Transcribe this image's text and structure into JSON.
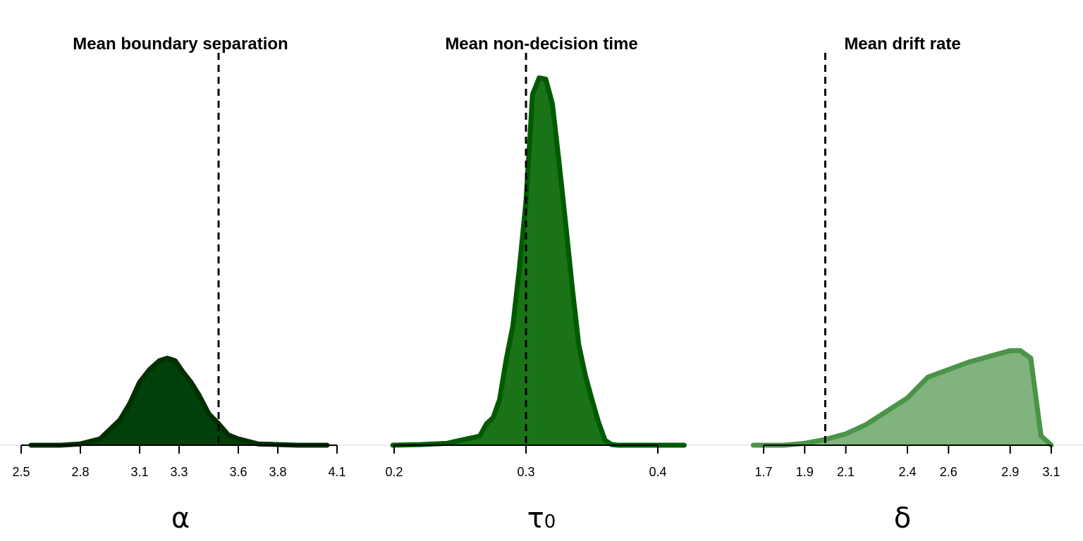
{
  "chart_data": [
    {
      "type": "area",
      "title": "Mean boundary separation",
      "xlabel": "α",
      "xlabel_subscript": "",
      "xlim": [
        2.5,
        4.1
      ],
      "ylim": [
        0,
        3.0
      ],
      "xticks": [
        2.5,
        2.8,
        3.1,
        3.3,
        3.6,
        3.8,
        4.1
      ],
      "xtick_labels": [
        "2.5",
        "2.8",
        "3.1",
        "3.3",
        "3.6",
        "3.8",
        "4.1"
      ],
      "reference_line": 3.5,
      "fill_color": "#00400a",
      "line_color": "#003000",
      "x": [
        2.55,
        2.7,
        2.8,
        2.9,
        3.0,
        3.05,
        3.1,
        3.15,
        3.2,
        3.24,
        3.28,
        3.32,
        3.36,
        3.4,
        3.45,
        3.5,
        3.55,
        3.6,
        3.7,
        3.8,
        3.9,
        4.0,
        4.05
      ],
      "y": [
        0.0,
        0.0,
        0.01,
        0.05,
        0.2,
        0.33,
        0.5,
        0.6,
        0.67,
        0.69,
        0.67,
        0.58,
        0.5,
        0.4,
        0.25,
        0.17,
        0.08,
        0.05,
        0.01,
        0.005,
        0.0,
        0.0,
        0.0
      ]
    },
    {
      "type": "area",
      "title": "Mean non-decision time",
      "xlabel": "τ",
      "xlabel_subscript": "0",
      "xlim": [
        0.2,
        0.4
      ],
      "ylim": [
        0,
        62
      ],
      "xticks": [
        0.2,
        0.3,
        0.4
      ],
      "xtick_labels": [
        "0.2",
        "0.3",
        "0.4"
      ],
      "reference_line": 0.3,
      "fill_color": "#1a7317",
      "line_color": "#005a00",
      "x": [
        0.199,
        0.22,
        0.24,
        0.25,
        0.265,
        0.27,
        0.275,
        0.28,
        0.285,
        0.29,
        0.295,
        0.3,
        0.305,
        0.31,
        0.315,
        0.32,
        0.325,
        0.33,
        0.335,
        0.34,
        0.345,
        0.35,
        0.355,
        0.36,
        0.365,
        0.37,
        0.375,
        0.38,
        0.39,
        0.4,
        0.42
      ],
      "y": [
        0.0,
        0.1,
        0.3,
        0.8,
        1.5,
        3.5,
        4.5,
        7.5,
        14.0,
        19.5,
        29.0,
        40.0,
        57.5,
        60.2,
        60.0,
        56.0,
        46.5,
        36.5,
        26.0,
        16.5,
        11.5,
        7.5,
        3.8,
        0.8,
        0.1,
        0.0,
        0.0,
        0.0,
        0.0,
        0.0,
        0.0
      ]
    },
    {
      "type": "area",
      "title": "Mean drift rate",
      "xlabel": "δ",
      "xlabel_subscript": "",
      "xlim": [
        1.7,
        3.1
      ],
      "ylim": [
        0,
        2.0
      ],
      "xticks": [
        1.7,
        1.9,
        2.1,
        2.4,
        2.6,
        2.9,
        3.1
      ],
      "xtick_labels": [
        "1.7",
        "1.9",
        "2.1",
        "2.4",
        "2.6",
        "2.9",
        "3.1"
      ],
      "reference_line": 2.0,
      "fill_color": "#80b37d",
      "line_color": "#4a9347",
      "x": [
        1.65,
        1.8,
        1.9,
        2.0,
        2.1,
        2.2,
        2.3,
        2.4,
        2.5,
        2.6,
        2.7,
        2.8,
        2.9,
        2.95,
        3.0,
        3.05,
        3.1
      ],
      "y": [
        0.0,
        0.0,
        0.01,
        0.03,
        0.06,
        0.11,
        0.18,
        0.25,
        0.36,
        0.4,
        0.44,
        0.47,
        0.5,
        0.5,
        0.46,
        0.05,
        0.0
      ]
    }
  ]
}
